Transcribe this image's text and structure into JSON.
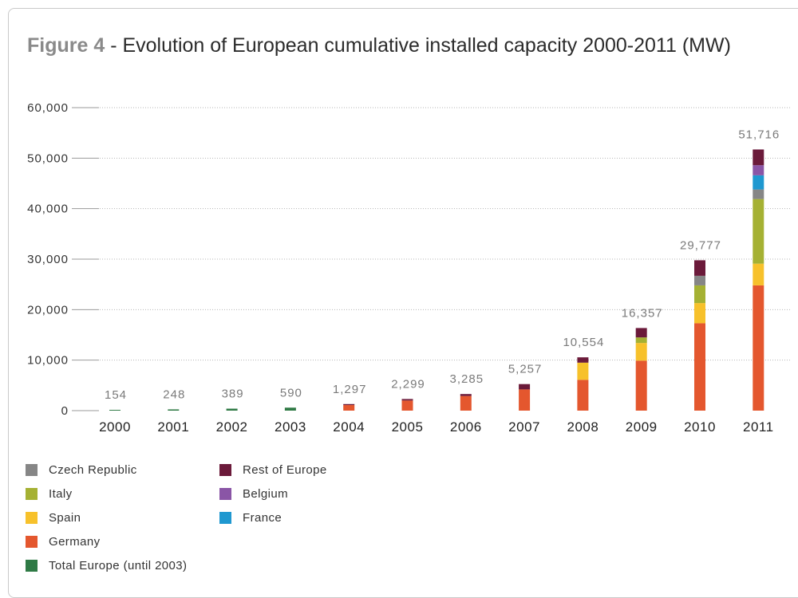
{
  "figure": {
    "title_lead": "Figure 4",
    "title_rest": " - Evolution of European cumulative installed capacity 2000-2011 (MW)"
  },
  "chart_data": {
    "type": "bar",
    "stacked": true,
    "title": "Figure 4 - Evolution of European cumulative installed capacity 2000-2011 (MW)",
    "categories": [
      "2000",
      "2001",
      "2002",
      "2003",
      "2004",
      "2005",
      "2006",
      "2007",
      "2008",
      "2009",
      "2010",
      "2011"
    ],
    "ylim": [
      0,
      60000
    ],
    "yticks": [
      0,
      10000,
      20000,
      30000,
      40000,
      50000,
      60000
    ],
    "ytick_labels": [
      "0",
      "10,000",
      "20,000",
      "30,000",
      "40,000",
      "50,000",
      "60,000"
    ],
    "grid": true,
    "legend_position": "bottom",
    "totals": [
      154,
      248,
      389,
      590,
      1297,
      2299,
      3285,
      5257,
      10554,
      16357,
      29777,
      51716
    ],
    "total_labels": [
      "154",
      "248",
      "389",
      "590",
      "1,297",
      "2,299",
      "3,285",
      "5,257",
      "10,554",
      "16,357",
      "29,777",
      "51,716"
    ],
    "series": [
      {
        "name": "Total Europe (until 2003)",
        "color": "#2f7a45",
        "values": [
          154,
          248,
          389,
          590,
          0,
          0,
          0,
          0,
          0,
          0,
          0,
          0
        ]
      },
      {
        "name": "Germany",
        "color": "#e4572e",
        "values": [
          0,
          0,
          0,
          0,
          1100,
          2000,
          2900,
          4200,
          6100,
          9900,
          17300,
          24800
        ]
      },
      {
        "name": "Spain",
        "color": "#f7c12b",
        "values": [
          0,
          0,
          0,
          0,
          0,
          0,
          0,
          0,
          3400,
          3500,
          4000,
          4300
        ]
      },
      {
        "name": "Italy",
        "color": "#a5b133",
        "values": [
          0,
          0,
          0,
          0,
          0,
          0,
          0,
          0,
          0,
          1100,
          3500,
          12800
        ]
      },
      {
        "name": "Czech Republic",
        "color": "#868686",
        "values": [
          0,
          0,
          0,
          0,
          0,
          0,
          0,
          0,
          0,
          0,
          1900,
          1900
        ]
      },
      {
        "name": "France",
        "color": "#1f98d0",
        "values": [
          0,
          0,
          0,
          0,
          0,
          0,
          0,
          0,
          0,
          0,
          0,
          2800
        ]
      },
      {
        "name": "Belgium",
        "color": "#8a55a6",
        "values": [
          0,
          0,
          0,
          0,
          0,
          0,
          0,
          0,
          0,
          0,
          0,
          2000
        ]
      },
      {
        "name": "Rest of Europe",
        "color": "#6b1a3a",
        "values": [
          0,
          0,
          0,
          0,
          197,
          299,
          385,
          1057,
          1054,
          1857,
          3077,
          3116
        ]
      }
    ]
  },
  "legend": {
    "items": [
      {
        "label": "Czech Republic",
        "color": "#868686"
      },
      {
        "label": "Italy",
        "color": "#a5b133"
      },
      {
        "label": "Spain",
        "color": "#f7c12b"
      },
      {
        "label": "Germany",
        "color": "#e4572e"
      },
      {
        "label": "Total Europe (until 2003)",
        "color": "#2f7a45"
      },
      {
        "label": "Rest of Europe",
        "color": "#6b1a3a"
      },
      {
        "label": "Belgium",
        "color": "#8a55a6"
      },
      {
        "label": "France",
        "color": "#1f98d0"
      }
    ]
  }
}
